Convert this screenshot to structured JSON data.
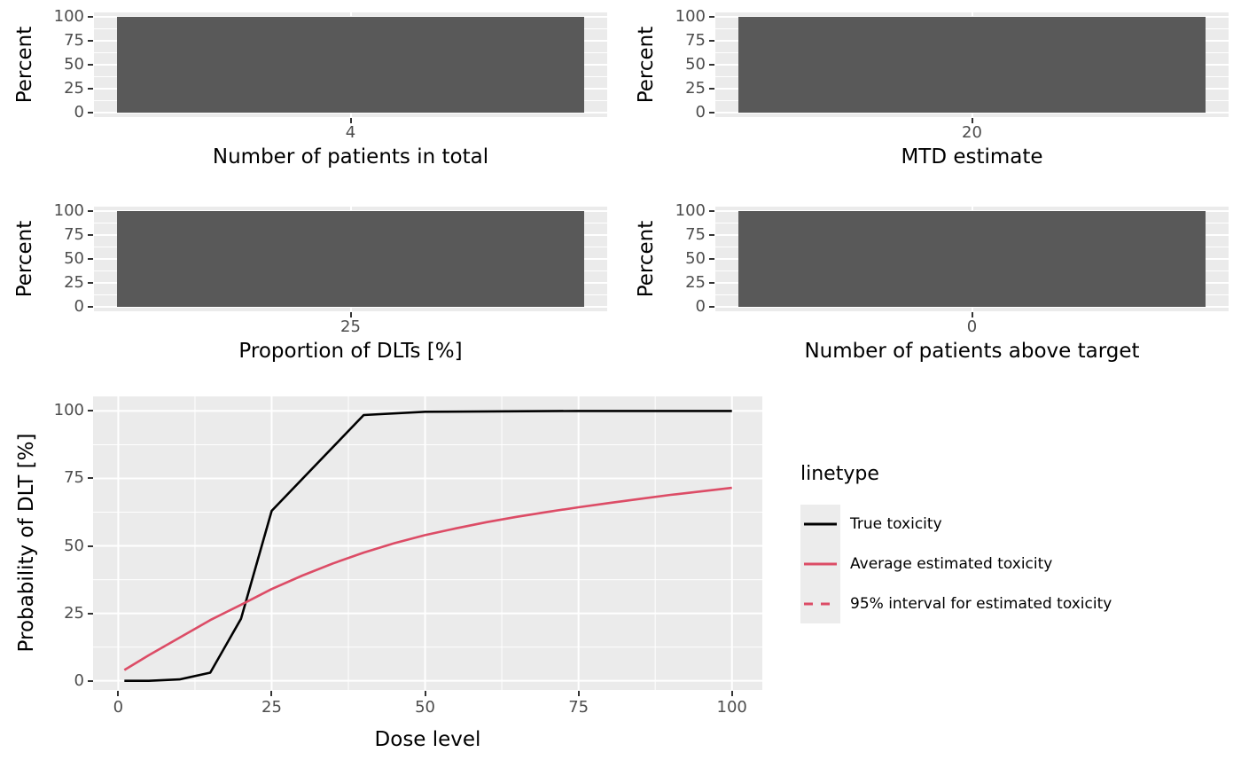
{
  "colors": {
    "background": "#FFFFFF",
    "panel_bg": "#EBEBEB",
    "grid": "#FFFFFF",
    "bar_fill": "#595959",
    "tick_label": "#4D4D4D",
    "tick_mark": "#333333",
    "axis_title": "#000000",
    "true_toxicity": "#000000",
    "estimated_toxicity": "#DC4C66",
    "legend_key_bg": "#ECECEC"
  },
  "chart_data": [
    {
      "type": "bar",
      "xlabel": "Number of patients in total",
      "ylabel": "Percent",
      "categories": [
        "4"
      ],
      "values": [
        100
      ],
      "ylim": [
        0,
        100
      ],
      "yticks": [
        0,
        25,
        50,
        75,
        100
      ],
      "grid": "on"
    },
    {
      "type": "bar",
      "xlabel": "MTD estimate",
      "ylabel": "Percent",
      "categories": [
        "20"
      ],
      "values": [
        100
      ],
      "ylim": [
        0,
        100
      ],
      "yticks": [
        0,
        25,
        50,
        75,
        100
      ],
      "grid": "on"
    },
    {
      "type": "bar",
      "xlabel": "Proportion of DLTs [%]",
      "ylabel": "Percent",
      "categories": [
        "25"
      ],
      "values": [
        100
      ],
      "ylim": [
        0,
        100
      ],
      "yticks": [
        0,
        25,
        50,
        75,
        100
      ],
      "grid": "on"
    },
    {
      "type": "bar",
      "xlabel": "Number of patients above target",
      "ylabel": "Percent",
      "categories": [
        "0"
      ],
      "values": [
        100
      ],
      "ylim": [
        0,
        100
      ],
      "yticks": [
        0,
        25,
        50,
        75,
        100
      ],
      "grid": "on"
    },
    {
      "type": "line",
      "xlabel": "Dose level",
      "ylabel": "Probability of DLT [%]",
      "xlim": [
        0,
        100
      ],
      "ylim": [
        0,
        100
      ],
      "xticks": [
        0,
        25,
        50,
        75,
        100
      ],
      "yticks": [
        0,
        25,
        50,
        75,
        100
      ],
      "grid": "on",
      "legend": {
        "title": "linetype",
        "position": "right",
        "entries": [
          {
            "label": "True toxicity",
            "color": "#000000",
            "dash": "solid"
          },
          {
            "label": "Average estimated toxicity",
            "color": "#DC4C66",
            "dash": "solid"
          },
          {
            "label": "95% interval for estimated toxicity",
            "color": "#DC4C66",
            "dash": "dashed"
          }
        ]
      },
      "series": [
        {
          "name": "True toxicity",
          "color": "#000000",
          "dash": "solid",
          "x": [
            1,
            5,
            10,
            15,
            20,
            25,
            40,
            50,
            75,
            100
          ],
          "y": [
            0,
            0,
            0.5,
            3,
            23,
            63,
            98.5,
            99.7,
            100,
            100
          ]
        },
        {
          "name": "Average estimated toxicity",
          "color": "#DC4C66",
          "dash": "solid",
          "x": [
            1,
            5,
            10,
            15,
            20,
            25,
            30,
            35,
            40,
            45,
            50,
            55,
            60,
            65,
            70,
            75,
            80,
            85,
            90,
            95,
            100
          ],
          "y": [
            4,
            9.5,
            16,
            22.5,
            28.2,
            34,
            39,
            43.5,
            47.5,
            51,
            54,
            56.5,
            58.8,
            60.8,
            62.6,
            64.3,
            65.9,
            67.4,
            68.9,
            70.2,
            71.5
          ]
        }
      ]
    }
  ]
}
